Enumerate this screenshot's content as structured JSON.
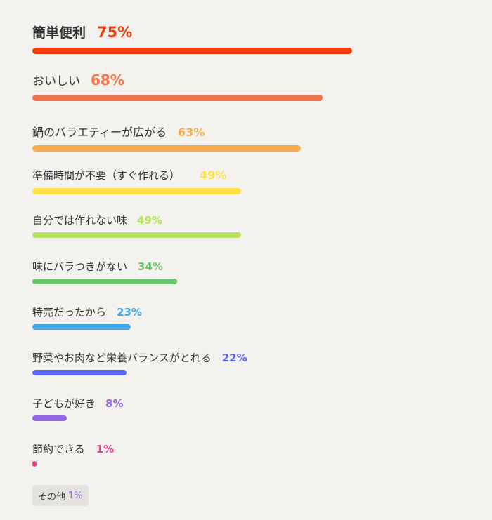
{
  "chart_data": {
    "type": "bar",
    "orientation": "horizontal",
    "unit": "%",
    "categories": [
      "簡単便利",
      "おいしい",
      "鍋のバラエティーが広がる",
      "準備時間が不要（すぐ作れる）",
      "自分では作れない味",
      "味にバラつきがない",
      "特売だったから",
      "野菜やお肉など栄養バランスがとれる",
      "子どもが好き",
      "節約できる"
    ],
    "values": [
      75,
      68,
      63,
      49,
      49,
      34,
      23,
      22,
      8,
      1
    ],
    "value_labels": [
      "75%",
      "68%",
      "63%",
      "49%",
      "49%",
      "34%",
      "23%",
      "22%",
      "8%",
      "1%"
    ],
    "colors": [
      "#f33a0b",
      "#f2734a",
      "#f8ad4b",
      "#fde24a",
      "#b8e25b",
      "#69c56b",
      "#3fa8ef",
      "#5868f0",
      "#9468e2",
      "#ee3f96"
    ],
    "other": {
      "label": "その他",
      "value": 1,
      "value_label": "1%",
      "color": "#9468e2"
    },
    "xlim": [
      0,
      100
    ],
    "grid": false
  }
}
